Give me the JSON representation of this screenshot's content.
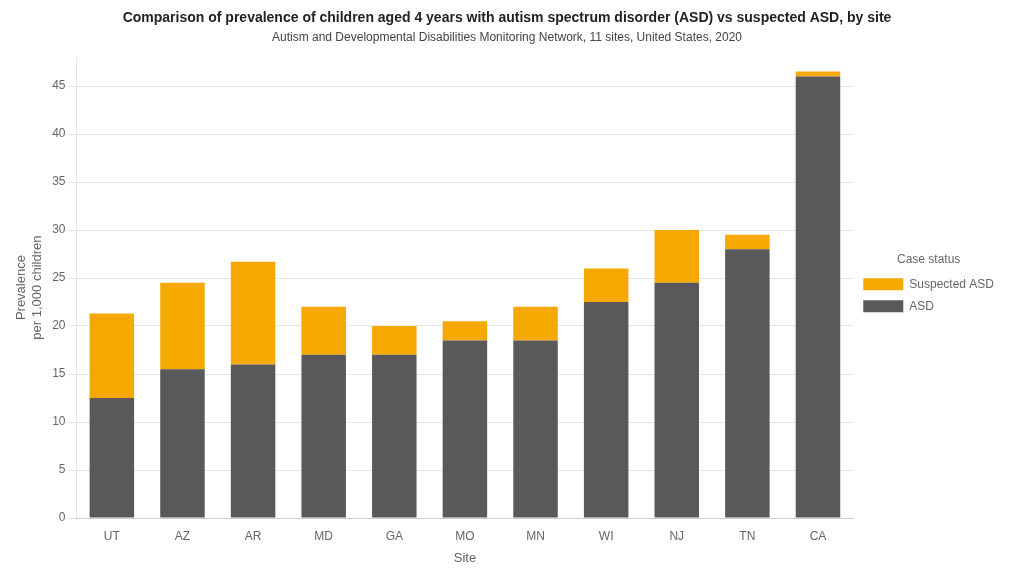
{
  "chart_data": {
    "type": "bar",
    "title": "Comparison of prevalence of children aged 4 years with autism spectrum disorder (ASD) vs suspected ASD, by site",
    "subtitle": "Autism and Developmental Disabilities Monitoring Network, 11 sites, United States, 2020",
    "x_label": "Site",
    "y_label": "Prevalence\nper 1,000 children",
    "categories": [
      "UT",
      "AZ",
      "AR",
      "MD",
      "GA",
      "MO",
      "MN",
      "WI",
      "NJ",
      "TN",
      "CA"
    ],
    "series": [
      {
        "name": "ASD",
        "color": "#595959",
        "values": [
          12.5,
          15.5,
          16.0,
          17.0,
          17.0,
          18.5,
          18.5,
          22.5,
          24.5,
          28.0,
          46.0
        ]
      },
      {
        "name": "Suspected ASD",
        "color": "#F5A800",
        "values": [
          8.8,
          9.0,
          10.7,
          5.0,
          3.0,
          2.0,
          3.5,
          3.5,
          5.5,
          1.5,
          0.5
        ]
      }
    ],
    "stacked": true,
    "ylim": [
      0,
      48
    ],
    "yticks": [
      0,
      5,
      10,
      15,
      20,
      25,
      30,
      35,
      40,
      45
    ],
    "grid": "y",
    "legend": "right",
    "legend_title": "Case status"
  }
}
